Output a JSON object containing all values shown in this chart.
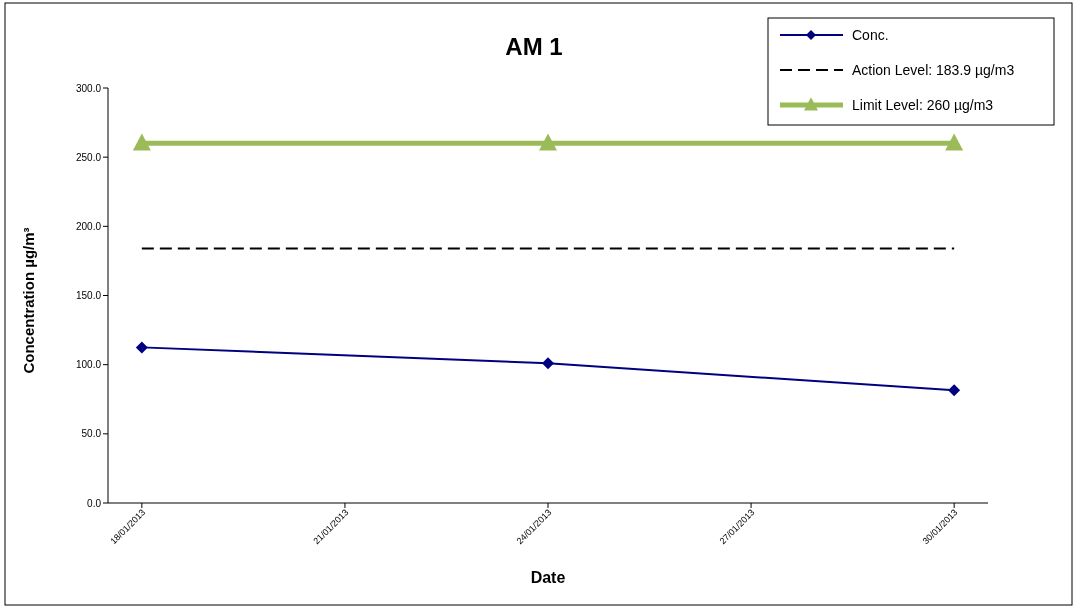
{
  "chart_data": {
    "type": "line",
    "title": "AM 1",
    "xlabel": "Date",
    "ylabel": "Concentration µg/m³",
    "x": [
      "2013-01-18",
      "2013-01-24",
      "2013-01-30"
    ],
    "xlim": [
      "2013-01-17T12:00",
      "2013-01-30T12:00"
    ],
    "xticks": [
      {
        "value": "2013-01-18",
        "label": "18/01/2013"
      },
      {
        "value": "2013-01-21",
        "label": "21/01/2013"
      },
      {
        "value": "2013-01-24",
        "label": "24/01/2013"
      },
      {
        "value": "2013-01-27",
        "label": "27/01/2013"
      },
      {
        "value": "2013-01-30",
        "label": "30/01/2013"
      }
    ],
    "ylim": [
      0,
      300
    ],
    "yticks": [
      {
        "value": 0,
        "label": "0.0"
      },
      {
        "value": 50,
        "label": "50.0"
      },
      {
        "value": 100,
        "label": "100.0"
      },
      {
        "value": 150,
        "label": "150.0"
      },
      {
        "value": 200,
        "label": "200.0"
      },
      {
        "value": 250,
        "label": "250.0"
      },
      {
        "value": 300,
        "label": "300.0"
      }
    ],
    "series": [
      {
        "name": "Conc.",
        "color": "#000080",
        "values": [
          112.5,
          101,
          81.5
        ],
        "marker": "diamond",
        "line_style": "solid"
      },
      {
        "name": "Action Level: 183.9 µg/m3",
        "color": "#000000",
        "values": [
          183.9,
          183.9,
          183.9
        ],
        "marker": "none",
        "line_style": "dashed"
      },
      {
        "name": "Limit Level: 260 µg/m3",
        "color": "#9bbb59",
        "values": [
          260,
          260,
          260
        ],
        "marker": "triangle",
        "line_style": "solid"
      }
    ],
    "grid": false,
    "legend": "top right"
  }
}
